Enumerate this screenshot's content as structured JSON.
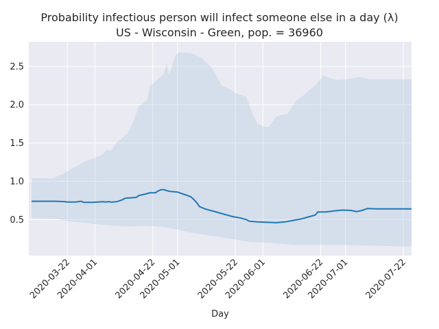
{
  "chart_data": {
    "type": "line",
    "title_line1": "Probability infectious person will infect someone else in a day (λ)",
    "title_line2": "US - Wisconsin - Green, pop. = 36960",
    "xlabel": "Day",
    "ylabel": "",
    "x_range": [
      "2020-03-08",
      "2020-07-25"
    ],
    "ylim": [
      0.03,
      2.82
    ],
    "grid": true,
    "legend": "none",
    "x_tick_labels": [
      "2020-03-22",
      "2020-04-01",
      "2020-04-22",
      "2020-05-01",
      "2020-05-22",
      "2020-06-01",
      "2020-06-22",
      "2020-07-01",
      "2020-07-22"
    ],
    "y_ticks": [
      0.5,
      1.0,
      1.5,
      2.0,
      2.5
    ],
    "y_tick_labels": [
      "0.5",
      "1.0",
      "1.5",
      "2.0",
      "2.5"
    ],
    "colors": {
      "line": "#1f77b4",
      "band": "#b0c8e0",
      "plot_bg": "#eaeaf2",
      "grid": "#ffffff"
    },
    "series": [
      {
        "points": [
          [
            "2020-03-09",
            0.74
          ],
          [
            "2020-03-18",
            0.74
          ],
          [
            "2020-03-21",
            0.735
          ],
          [
            "2020-03-22",
            0.73
          ],
          [
            "2020-03-25",
            0.73
          ],
          [
            "2020-03-27",
            0.74
          ],
          [
            "2020-03-28",
            0.725
          ],
          [
            "2020-03-31",
            0.725
          ],
          [
            "2020-04-04",
            0.735
          ],
          [
            "2020-04-05",
            0.73
          ],
          [
            "2020-04-06",
            0.735
          ],
          [
            "2020-04-07",
            0.728
          ],
          [
            "2020-04-09",
            0.735
          ],
          [
            "2020-04-11",
            0.76
          ],
          [
            "2020-04-12",
            0.78
          ],
          [
            "2020-04-14",
            0.785
          ],
          [
            "2020-04-16",
            0.79
          ],
          [
            "2020-04-17",
            0.815
          ],
          [
            "2020-04-19",
            0.83
          ],
          [
            "2020-04-21",
            0.85
          ],
          [
            "2020-04-23",
            0.85
          ],
          [
            "2020-04-24",
            0.875
          ],
          [
            "2020-04-25",
            0.89
          ],
          [
            "2020-04-26",
            0.89
          ],
          [
            "2020-04-28",
            0.87
          ],
          [
            "2020-05-01",
            0.86
          ],
          [
            "2020-05-03",
            0.835
          ],
          [
            "2020-05-05",
            0.81
          ],
          [
            "2020-05-06",
            0.795
          ],
          [
            "2020-05-07",
            0.76
          ],
          [
            "2020-05-08",
            0.72
          ],
          [
            "2020-05-09",
            0.67
          ],
          [
            "2020-05-11",
            0.64
          ],
          [
            "2020-05-14",
            0.61
          ],
          [
            "2020-05-17",
            0.58
          ],
          [
            "2020-05-19",
            0.56
          ],
          [
            "2020-05-21",
            0.54
          ],
          [
            "2020-05-24",
            0.52
          ],
          [
            "2020-05-26",
            0.5
          ],
          [
            "2020-05-27",
            0.48
          ],
          [
            "2020-05-30",
            0.47
          ],
          [
            "2020-06-03",
            0.465
          ],
          [
            "2020-06-06",
            0.46
          ],
          [
            "2020-06-09",
            0.47
          ],
          [
            "2020-06-12",
            0.49
          ],
          [
            "2020-06-15",
            0.51
          ],
          [
            "2020-06-17",
            0.53
          ],
          [
            "2020-06-20",
            0.56
          ],
          [
            "2020-06-21",
            0.6
          ],
          [
            "2020-06-24",
            0.6
          ],
          [
            "2020-06-27",
            0.615
          ],
          [
            "2020-06-30",
            0.625
          ],
          [
            "2020-07-03",
            0.62
          ],
          [
            "2020-07-05",
            0.605
          ],
          [
            "2020-07-07",
            0.62
          ],
          [
            "2020-07-09",
            0.645
          ],
          [
            "2020-07-13",
            0.64
          ],
          [
            "2020-07-25",
            0.64
          ]
        ],
        "band_upper": [
          [
            "2020-03-09",
            1.04
          ],
          [
            "2020-03-17",
            1.04
          ],
          [
            "2020-03-18",
            1.06
          ],
          [
            "2020-03-20",
            1.09
          ],
          [
            "2020-03-22",
            1.13
          ],
          [
            "2020-03-24",
            1.17
          ],
          [
            "2020-03-26",
            1.21
          ],
          [
            "2020-03-28",
            1.25
          ],
          [
            "2020-03-30",
            1.28
          ],
          [
            "2020-04-02",
            1.32
          ],
          [
            "2020-04-04",
            1.35
          ],
          [
            "2020-04-05",
            1.41
          ],
          [
            "2020-04-07",
            1.4
          ],
          [
            "2020-04-09",
            1.51
          ],
          [
            "2020-04-13",
            1.63
          ],
          [
            "2020-04-15",
            1.78
          ],
          [
            "2020-04-17",
            1.98
          ],
          [
            "2020-04-20",
            2.06
          ],
          [
            "2020-04-21",
            2.25
          ],
          [
            "2020-04-23",
            2.3
          ],
          [
            "2020-04-26",
            2.4
          ],
          [
            "2020-04-27",
            2.55
          ],
          [
            "2020-04-28",
            2.38
          ],
          [
            "2020-04-30",
            2.62
          ],
          [
            "2020-05-01",
            2.68
          ],
          [
            "2020-05-04",
            2.68
          ],
          [
            "2020-05-07",
            2.66
          ],
          [
            "2020-05-10",
            2.6
          ],
          [
            "2020-05-13",
            2.5
          ],
          [
            "2020-05-15",
            2.38
          ],
          [
            "2020-05-17",
            2.25
          ],
          [
            "2020-05-20",
            2.2
          ],
          [
            "2020-05-22",
            2.15
          ],
          [
            "2020-05-26",
            2.1
          ],
          [
            "2020-05-28",
            1.9
          ],
          [
            "2020-05-30",
            1.75
          ],
          [
            "2020-06-01",
            1.72
          ],
          [
            "2020-06-03",
            1.7
          ],
          [
            "2020-06-06",
            1.85
          ],
          [
            "2020-06-10",
            1.88
          ],
          [
            "2020-06-13",
            2.05
          ],
          [
            "2020-06-15",
            2.1
          ],
          [
            "2020-06-20",
            2.25
          ],
          [
            "2020-06-23",
            2.38
          ],
          [
            "2020-06-25",
            2.35
          ],
          [
            "2020-06-28",
            2.32
          ],
          [
            "2020-07-03",
            2.34
          ],
          [
            "2020-07-06",
            2.36
          ],
          [
            "2020-07-10",
            2.33
          ],
          [
            "2020-07-25",
            2.33
          ]
        ],
        "band_lower": [
          [
            "2020-03-09",
            0.52
          ],
          [
            "2020-03-18",
            0.51
          ],
          [
            "2020-03-22",
            0.48
          ],
          [
            "2020-03-28",
            0.46
          ],
          [
            "2020-04-02",
            0.44
          ],
          [
            "2020-04-08",
            0.42
          ],
          [
            "2020-04-14",
            0.41
          ],
          [
            "2020-04-19",
            0.42
          ],
          [
            "2020-04-25",
            0.41
          ],
          [
            "2020-05-01",
            0.37
          ],
          [
            "2020-05-06",
            0.33
          ],
          [
            "2020-05-11",
            0.3
          ],
          [
            "2020-05-17",
            0.27
          ],
          [
            "2020-05-22",
            0.24
          ],
          [
            "2020-05-27",
            0.21
          ],
          [
            "2020-06-01",
            0.2
          ],
          [
            "2020-06-06",
            0.19
          ],
          [
            "2020-06-12",
            0.17
          ],
          [
            "2020-06-22",
            0.17
          ],
          [
            "2020-07-01",
            0.17
          ],
          [
            "2020-07-10",
            0.16
          ],
          [
            "2020-07-25",
            0.15
          ]
        ]
      }
    ]
  }
}
